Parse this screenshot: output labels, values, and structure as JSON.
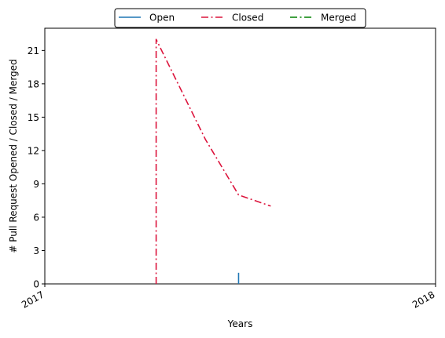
{
  "chart_data": {
    "type": "line",
    "title": "",
    "xlabel": "Years",
    "ylabel": "# Pull Request Opened / Closed / Merged",
    "x_tick_labels": [
      "2017",
      "2018"
    ],
    "x_range": [
      "2017-01-01",
      "2018-01-01"
    ],
    "y_ticks": [
      0,
      3,
      6,
      9,
      12,
      15,
      18,
      21
    ],
    "ylim": [
      0,
      23
    ],
    "grid": false,
    "legend_position": "top-center",
    "series": [
      {
        "name": "Open",
        "color": "#1f77b4",
        "style": "solid",
        "points": [
          {
            "x": "2017-07-01",
            "y": 0
          },
          {
            "x": "2017-07-01",
            "y": 1
          }
        ]
      },
      {
        "name": "Closed",
        "color": "#dc143c",
        "style": "dashdot",
        "points": [
          {
            "x": "2017-04-15",
            "y": 0
          },
          {
            "x": "2017-04-15",
            "y": 22
          },
          {
            "x": "2017-05-31",
            "y": 13
          },
          {
            "x": "2017-07-01",
            "y": 8
          },
          {
            "x": "2017-07-31",
            "y": 7
          }
        ]
      },
      {
        "name": "Merged",
        "color": "#008000",
        "style": "dashdot",
        "points": []
      }
    ]
  }
}
